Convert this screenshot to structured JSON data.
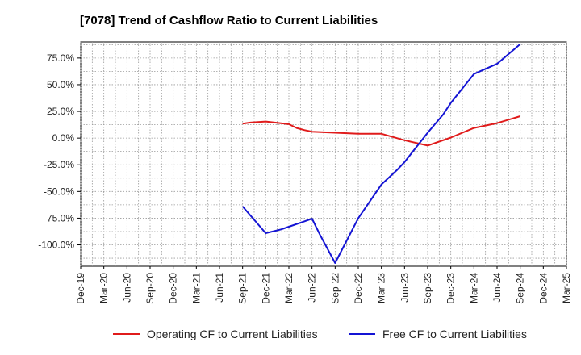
{
  "chart_data": {
    "type": "line",
    "title": "[7078]  Trend of Cashflow Ratio to Current Liabilities",
    "xlabel": "",
    "ylabel": "",
    "x": [
      "Dec-19",
      "Mar-20",
      "Jun-20",
      "Sep-20",
      "Dec-20",
      "Mar-21",
      "Jun-21",
      "Sep-21",
      "Dec-21",
      "Mar-22",
      "Jun-22",
      "Sep-22",
      "Dec-22",
      "Mar-23",
      "Jun-23",
      "Sep-23",
      "Dec-23",
      "Mar-24",
      "Jun-24",
      "Sep-24",
      "Dec-24",
      "Mar-25"
    ],
    "y_ticks": [
      75,
      50,
      25,
      0,
      -25,
      -50,
      -75,
      -100
    ],
    "y_tick_labels": [
      "75.0%",
      "50.0%",
      "25.0%",
      "0.0%",
      "-25.0%",
      "-50.0%",
      "-75.0%",
      "-100.0%"
    ],
    "ylim": [
      -120,
      90
    ],
    "grid": true,
    "legend_position": "bottom",
    "series": [
      {
        "name": "Operating CF to Current Liabilities",
        "color": "#e01b1b",
        "points": [
          [
            "Sep-21",
            13.5
          ],
          [
            "Oct-21",
            14.5
          ],
          [
            "Dec-21",
            15.5
          ],
          [
            "Mar-22",
            13.0
          ],
          [
            "Apr-22",
            9.5
          ],
          [
            "May-22",
            7.5
          ],
          [
            "Jun-22",
            6.0
          ],
          [
            "Sep-22",
            5.0
          ],
          [
            "Dec-22",
            4.0
          ],
          [
            "Mar-23",
            4.0
          ],
          [
            "Jun-23",
            -2.0
          ],
          [
            "Sep-23",
            -7.0
          ],
          [
            "Dec-23",
            0.5
          ],
          [
            "Mar-24",
            9.5
          ],
          [
            "Jun-24",
            14.0
          ],
          [
            "Sep-24",
            20.5
          ]
        ]
      },
      {
        "name": "Free CF to Current Liabilities",
        "color": "#1414d4",
        "points": [
          [
            "Sep-21",
            -64.0
          ],
          [
            "Dec-21",
            -89.0
          ],
          [
            "Feb-22",
            -85.5
          ],
          [
            "Mar-22",
            -83.0
          ],
          [
            "May-22",
            -78.0
          ],
          [
            "Jun-22",
            -75.5
          ],
          [
            "Jul-22",
            -90.0
          ],
          [
            "Sep-22",
            -117.0
          ],
          [
            "Dec-22",
            -75.0
          ],
          [
            "Mar-23",
            -43.5
          ],
          [
            "May-23",
            -30.0
          ],
          [
            "Jun-23",
            -22.5
          ],
          [
            "Sep-23",
            5.0
          ],
          [
            "Nov-23",
            22.0
          ],
          [
            "Dec-23",
            33.0
          ],
          [
            "Mar-24",
            60.0
          ],
          [
            "Jun-24",
            69.5
          ],
          [
            "Sep-24",
            88.0
          ]
        ]
      }
    ]
  }
}
